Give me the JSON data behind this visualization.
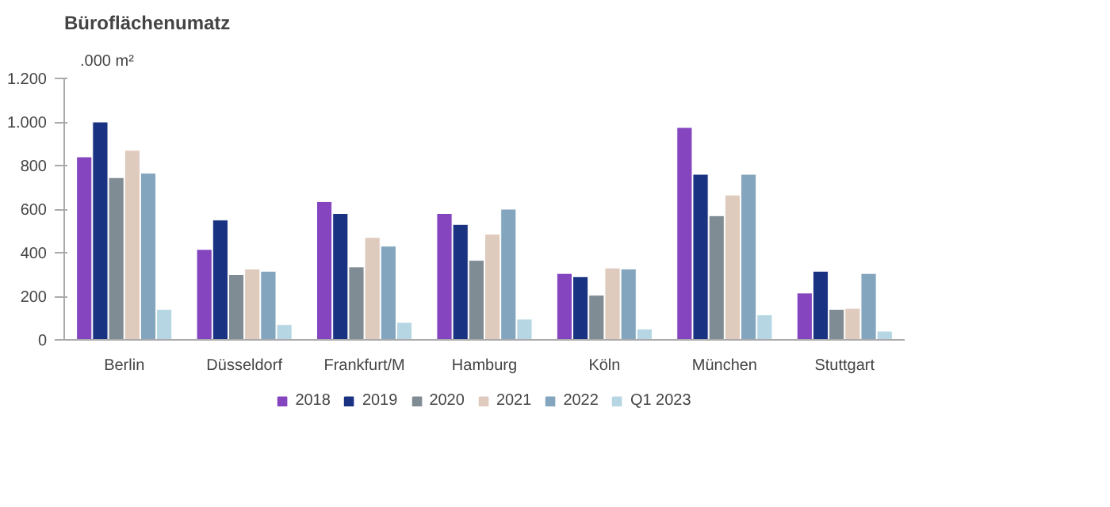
{
  "chart_data": {
    "type": "bar",
    "title": "Büroflächenumatz",
    "ylabel": ".000 m²",
    "categories": [
      "Berlin",
      "Düsseldorf",
      "Frankfurt/M",
      "Hamburg",
      "Köln",
      "München",
      "Stuttgart"
    ],
    "series": [
      {
        "name": "2018",
        "color": "#8445bf",
        "values": [
          840,
          415,
          635,
          580,
          305,
          975,
          215
        ]
      },
      {
        "name": "2019",
        "color": "#1a3282",
        "values": [
          1000,
          550,
          580,
          530,
          290,
          760,
          315
        ]
      },
      {
        "name": "2020",
        "color": "#808c94",
        "values": [
          745,
          300,
          335,
          365,
          205,
          570,
          140
        ]
      },
      {
        "name": "2021",
        "color": "#dfcbbd",
        "values": [
          870,
          325,
          470,
          485,
          330,
          665,
          145
        ]
      },
      {
        "name": "2022",
        "color": "#84a5be",
        "values": [
          765,
          315,
          430,
          600,
          325,
          760,
          305
        ]
      },
      {
        "name": "Q1 2023",
        "color": "#b5d6e2",
        "values": [
          140,
          70,
          80,
          95,
          50,
          115,
          40
        ]
      }
    ],
    "ylim": [
      0,
      1200
    ],
    "yticks": [
      0,
      200,
      400,
      600,
      800,
      {
        "value": 1000,
        "label": "1.000"
      },
      {
        "value": 1200,
        "label": "1.200"
      }
    ],
    "grid": false,
    "legend": "bottom"
  }
}
